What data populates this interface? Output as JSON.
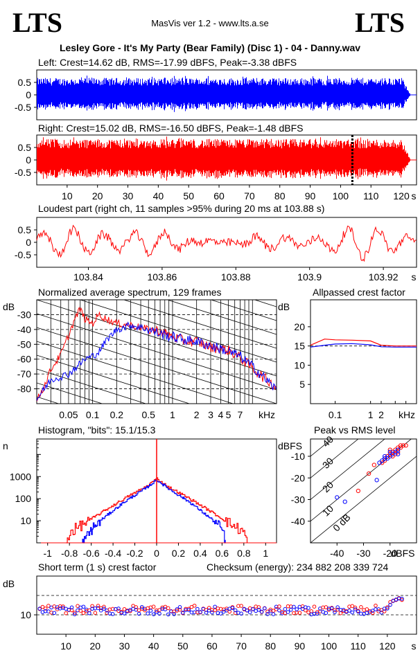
{
  "header": {
    "logo_left": "LTS",
    "logo_right": "LTS",
    "app_title": "MasVis ver 1.2 - www.lts.a.se",
    "file_title": "Lesley Gore - It's My Party (Bear Family) (Disc 1) - 04 - Danny.wav"
  },
  "colors": {
    "left": "#0000ff",
    "right": "#ff0000",
    "axis": "#000000"
  },
  "chart_data": [
    {
      "type": "area",
      "title": "Left: Crest=14.62 dB, RMS=-17.99 dBFS, Peak=-3.38 dBFS",
      "ylim": [
        -1,
        1
      ],
      "yticks": [
        "0.5",
        "0",
        "-0.5"
      ],
      "x_range_s": [
        0,
        125
      ],
      "end_s": 120,
      "series": [
        {
          "name": "Left",
          "color": "#0000ff"
        }
      ],
      "amplitude_peak": 0.68
    },
    {
      "type": "area",
      "title": "Right: Crest=15.02 dB, RMS=-16.50 dBFS, Peak=-1.48 dBFS",
      "ylim": [
        -1,
        1
      ],
      "yticks": [
        "0.5",
        "0",
        "-0.5"
      ],
      "x_range_s": [
        0,
        125
      ],
      "xticks": [
        "10",
        "20",
        "30",
        "40",
        "50",
        "60",
        "70",
        "80",
        "90",
        "100",
        "110",
        "120",
        "s"
      ],
      "marker_s": 103.88,
      "series": [
        {
          "name": "Right",
          "color": "#ff0000"
        }
      ],
      "amplitude_peak": 0.84
    },
    {
      "type": "line",
      "title": "Loudest part (right ch, 11 samples >95% during 20 ms at 103.88 s)",
      "ylim": [
        -1,
        1
      ],
      "yticks": [
        "0.5",
        "0",
        "-0.5"
      ],
      "xlim": [
        103.826,
        103.929
      ],
      "xticks": [
        "103.84",
        "103.86",
        "103.88",
        "103.9",
        "103.92",
        "s"
      ],
      "series": [
        {
          "name": "Right",
          "color": "#ff0000"
        }
      ]
    },
    {
      "type": "line",
      "title": "Normalized average spectrum, 129 frames",
      "ylabel": "dB",
      "ylim": [
        -90,
        -20
      ],
      "yticks": [
        "-30",
        "-40",
        "-50",
        "-60",
        "-70",
        "-80"
      ],
      "xticks": [
        "0.05",
        "0.1",
        "0.2",
        "0.5",
        "1",
        "2",
        "3",
        "4",
        "5",
        "7",
        "kHz"
      ],
      "xlim_khz": [
        0.02,
        20
      ],
      "series": [
        {
          "name": "Right",
          "color": "#ff0000",
          "points": [
            [
              0.02,
              -88
            ],
            [
              0.025,
              -78
            ],
            [
              0.03,
              -67
            ],
            [
              0.04,
              -57
            ],
            [
              0.05,
              -44
            ],
            [
              0.06,
              -33
            ],
            [
              0.07,
              -26
            ],
            [
              0.08,
              -33
            ],
            [
              0.1,
              -36
            ],
            [
              0.12,
              -30
            ],
            [
              0.15,
              -33
            ],
            [
              0.2,
              -36
            ],
            [
              0.3,
              -37
            ],
            [
              0.5,
              -40
            ],
            [
              0.7,
              -41
            ],
            [
              1,
              -45
            ],
            [
              1.5,
              -48
            ],
            [
              2,
              -48
            ],
            [
              3,
              -52
            ],
            [
              4,
              -53
            ],
            [
              5,
              -54
            ],
            [
              7,
              -59
            ],
            [
              10,
              -66
            ],
            [
              15,
              -74
            ],
            [
              20,
              -79
            ]
          ]
        },
        {
          "name": "Left",
          "color": "#0000ff",
          "points": [
            [
              0.02,
              -87
            ],
            [
              0.03,
              -74
            ],
            [
              0.05,
              -70
            ],
            [
              0.07,
              -63
            ],
            [
              0.08,
              -60
            ],
            [
              0.1,
              -58
            ],
            [
              0.12,
              -55
            ],
            [
              0.15,
              -47
            ],
            [
              0.2,
              -40
            ],
            [
              0.3,
              -37
            ],
            [
              0.5,
              -40
            ],
            [
              0.7,
              -43
            ],
            [
              1,
              -45
            ],
            [
              1.5,
              -47
            ],
            [
              2,
              -48
            ],
            [
              3,
              -51
            ],
            [
              4,
              -53
            ],
            [
              5,
              -55
            ],
            [
              7,
              -58
            ],
            [
              10,
              -65
            ],
            [
              15,
              -74
            ],
            [
              20,
              -81
            ]
          ]
        }
      ]
    },
    {
      "type": "line",
      "title": "Allpassed crest factor",
      "ylabel": "dB",
      "ylim": [
        0,
        27
      ],
      "yticks": [
        "20",
        "15",
        "10",
        "5"
      ],
      "xticks": [
        "0.1",
        "1",
        "2",
        "kHz"
      ],
      "series": [
        {
          "name": "Right",
          "color": "#ff0000",
          "points": [
            [
              0.02,
              15.2
            ],
            [
              0.05,
              16.8
            ],
            [
              0.1,
              16.6
            ],
            [
              0.3,
              16.5
            ],
            [
              1,
              16.3
            ],
            [
              2,
              15.2
            ],
            [
              5,
              15.0
            ],
            [
              20,
              15.0
            ]
          ]
        },
        {
          "name": "Left",
          "color": "#0000ff",
          "points": [
            [
              0.02,
              14.7
            ],
            [
              0.05,
              15.2
            ],
            [
              0.1,
              15.5
            ],
            [
              0.3,
              15.6
            ],
            [
              1,
              15.3
            ],
            [
              2,
              14.8
            ],
            [
              5,
              14.7
            ],
            [
              20,
              14.7
            ]
          ]
        }
      ]
    },
    {
      "type": "line",
      "title": "Histogram, \"bits\": 15.1/15.3",
      "ylabel": "n",
      "yscale": "log",
      "yticks": [
        "1000",
        "100",
        "10"
      ],
      "xlim": [
        -1.1,
        1.1
      ],
      "xticks": [
        "-1",
        "-0.8",
        "-0.6",
        "-0.4",
        "-0.2",
        "0",
        "0.2",
        "0.4",
        "0.6",
        "0.8",
        "1"
      ],
      "series": [
        {
          "name": "Right",
          "color": "#ff0000",
          "points": [
            [
              -0.83,
              1
            ],
            [
              -0.8,
              3
            ],
            [
              -0.7,
              6
            ],
            [
              -0.5,
              25
            ],
            [
              -0.3,
              100
            ],
            [
              -0.1,
              350
            ],
            [
              0,
              800
            ],
            [
              0.1,
              350
            ],
            [
              0.3,
              100
            ],
            [
              0.5,
              25
            ],
            [
              0.7,
              6
            ],
            [
              0.8,
              3
            ],
            [
              0.83,
              1
            ]
          ]
        },
        {
          "name": "Left",
          "color": "#0000ff",
          "points": [
            [
              -0.68,
              1
            ],
            [
              -0.6,
              4
            ],
            [
              -0.5,
              12
            ],
            [
              -0.3,
              70
            ],
            [
              -0.1,
              300
            ],
            [
              0,
              700
            ],
            [
              0.1,
              300
            ],
            [
              0.3,
              70
            ],
            [
              0.5,
              12
            ],
            [
              0.6,
              4
            ],
            [
              0.63,
              1
            ]
          ]
        }
      ]
    },
    {
      "type": "scatter",
      "title": "Peak vs RMS level",
      "ylabel": "dBFS",
      "xlabel": "dBFS",
      "xlim": [
        -50,
        -10
      ],
      "ylim": [
        -50,
        -2
      ],
      "xticks": [
        "-40",
        "-30",
        "-20",
        "dBFS"
      ],
      "yticks": [
        "-10",
        "-20",
        "-30",
        "-40"
      ],
      "diagonal_labels": [
        "40",
        "30",
        "20",
        "10",
        "0 dB"
      ],
      "series": [
        {
          "name": "Right",
          "color": "#ff0000",
          "points": [
            [
              -26,
              -14
            ],
            [
              -23,
              -13
            ],
            [
              -22,
              -12
            ],
            [
              -21,
              -10
            ],
            [
              -20,
              -9
            ],
            [
              -19,
              -8
            ],
            [
              -18,
              -7
            ],
            [
              -17,
              -6
            ],
            [
              -16,
              -5
            ],
            [
              -19,
              -10
            ],
            [
              -17,
              -8
            ],
            [
              -16,
              -6
            ],
            [
              -14,
              -5
            ],
            [
              -15,
              -5
            ],
            [
              -20,
              -7
            ],
            [
              -18,
              -9
            ],
            [
              -32,
              -26
            ],
            [
              -28,
              -18
            ]
          ]
        },
        {
          "name": "Left",
          "color": "#0000ff",
          "points": [
            [
              -24,
              -13
            ],
            [
              -23,
              -12
            ],
            [
              -22,
              -11
            ],
            [
              -21,
              -11
            ],
            [
              -20,
              -10
            ],
            [
              -19,
              -9
            ],
            [
              -18,
              -8
            ],
            [
              -17,
              -7
            ],
            [
              -22,
              -10
            ],
            [
              -20,
              -8
            ],
            [
              -40,
              -29
            ],
            [
              -25,
              -21
            ],
            [
              -37,
              -31
            ],
            [
              -17,
              -9
            ]
          ]
        }
      ]
    },
    {
      "type": "scatter",
      "title": "Short term (1 s) crest factor",
      "ylabel": "dB",
      "ytick_label": "10",
      "ylim": [
        0,
        30
      ],
      "dashed_levels": [
        10,
        20
      ],
      "xticks": [
        "10",
        "20",
        "30",
        "40",
        "50",
        "60",
        "70",
        "80",
        "90",
        "100",
        "110",
        "120",
        "s"
      ],
      "x_range_s": [
        0,
        130
      ],
      "series": [
        {
          "name": "Right",
          "color": "#ff0000"
        },
        {
          "name": "Left",
          "color": "#0000ff"
        }
      ]
    }
  ],
  "checksum": "Checksum (energy):  234 882 208 339 724"
}
